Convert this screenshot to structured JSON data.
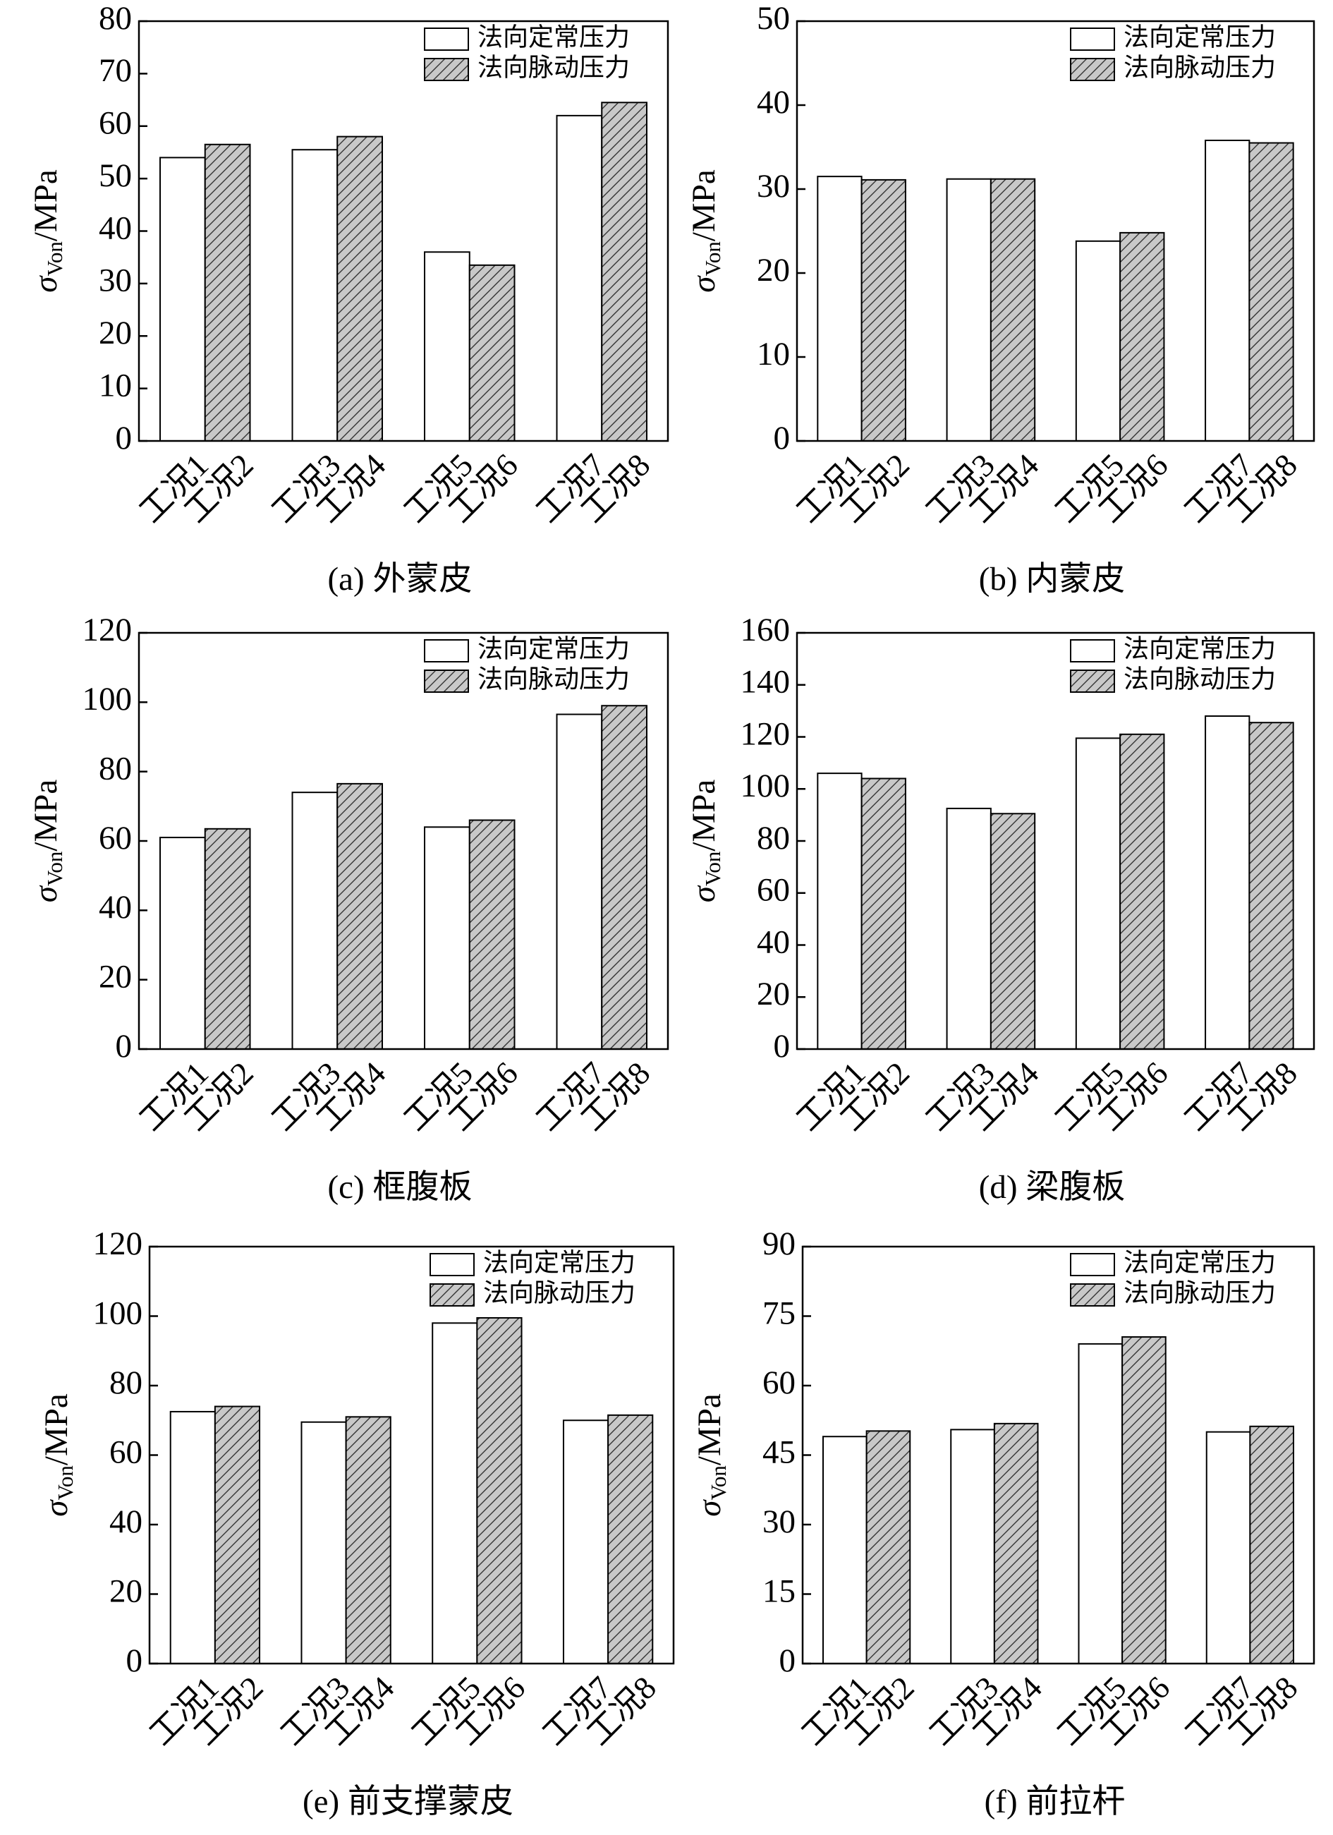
{
  "chart_data": [
    {
      "type": "bar",
      "title": "(a) 外蒙皮",
      "ylabel": {
        "symbol": "σ",
        "subscript": "Von",
        "unit": "/MPa"
      },
      "ylim": [
        0,
        80
      ],
      "yticks": [
        0,
        10,
        20,
        30,
        40,
        50,
        60,
        70,
        80
      ],
      "legend": "upper right",
      "series": [
        {
          "name": "法向定常压力",
          "color": "#ffffff",
          "hatch": false,
          "categories": [
            "工况1",
            "工况3",
            "工况5",
            "工况7"
          ],
          "values": [
            54,
            55.5,
            36,
            62
          ]
        },
        {
          "name": "法向脉动压力",
          "color": "#c8c8c8",
          "hatch": true,
          "categories": [
            "工况2",
            "工况4",
            "工况6",
            "工况8"
          ],
          "values": [
            56.5,
            58,
            33.5,
            64.5
          ]
        }
      ]
    },
    {
      "type": "bar",
      "title": "(b) 内蒙皮",
      "ylabel": {
        "symbol": "σ",
        "subscript": "Von",
        "unit": "/MPa"
      },
      "ylim": [
        0,
        50
      ],
      "yticks": [
        0,
        10,
        20,
        30,
        40,
        50
      ],
      "legend": "upper right",
      "series": [
        {
          "name": "法向定常压力",
          "color": "#ffffff",
          "hatch": false,
          "categories": [
            "工况1",
            "工况3",
            "工况5",
            "工况7"
          ],
          "values": [
            31.5,
            31.2,
            23.8,
            35.8
          ]
        },
        {
          "name": "法向脉动压力",
          "color": "#c8c8c8",
          "hatch": true,
          "categories": [
            "工况2",
            "工况4",
            "工况6",
            "工况8"
          ],
          "values": [
            31.1,
            31.2,
            24.8,
            35.5
          ]
        }
      ]
    },
    {
      "type": "bar",
      "title": "(c) 框腹板",
      "ylabel": {
        "symbol": "σ",
        "subscript": "Von",
        "unit": "/MPa"
      },
      "ylim": [
        0,
        120
      ],
      "yticks": [
        0,
        20,
        40,
        60,
        80,
        100,
        120
      ],
      "legend": "upper right",
      "series": [
        {
          "name": "法向定常压力",
          "color": "#ffffff",
          "hatch": false,
          "categories": [
            "工况1",
            "工况3",
            "工况5",
            "工况7"
          ],
          "values": [
            61,
            74,
            64,
            96.5
          ]
        },
        {
          "name": "法向脉动压力",
          "color": "#c8c8c8",
          "hatch": true,
          "categories": [
            "工况2",
            "工况4",
            "工况6",
            "工况8"
          ],
          "values": [
            63.5,
            76.5,
            66,
            99
          ]
        }
      ]
    },
    {
      "type": "bar",
      "title": "(d) 梁腹板",
      "ylabel": {
        "symbol": "σ",
        "subscript": "Von",
        "unit": "/MPa"
      },
      "ylim": [
        0,
        160
      ],
      "yticks": [
        0,
        20,
        40,
        60,
        80,
        100,
        120,
        140,
        160
      ],
      "legend": "upper right",
      "series": [
        {
          "name": "法向定常压力",
          "color": "#ffffff",
          "hatch": false,
          "categories": [
            "工况1",
            "工况3",
            "工况5",
            "工况7"
          ],
          "values": [
            106,
            92.5,
            119.5,
            128
          ]
        },
        {
          "name": "法向脉动压力",
          "color": "#c8c8c8",
          "hatch": true,
          "categories": [
            "工况2",
            "工况4",
            "工况6",
            "工况8"
          ],
          "values": [
            104,
            90.5,
            121,
            125.5
          ]
        }
      ]
    },
    {
      "type": "bar",
      "title": "(e) 前支撑蒙皮",
      "ylabel": {
        "symbol": "σ",
        "subscript": "Von",
        "unit": "/MPa"
      },
      "ylim": [
        0,
        120
      ],
      "yticks": [
        0,
        20,
        40,
        60,
        80,
        100,
        120
      ],
      "legend": "upper right",
      "series": [
        {
          "name": "法向定常压力",
          "color": "#ffffff",
          "hatch": false,
          "categories": [
            "工况1",
            "工况3",
            "工况5",
            "工况7"
          ],
          "values": [
            72.5,
            69.5,
            98,
            70
          ]
        },
        {
          "name": "法向脉动压力",
          "color": "#c8c8c8",
          "hatch": true,
          "categories": [
            "工况2",
            "工况4",
            "工况6",
            "工况8"
          ],
          "values": [
            74,
            71,
            99.5,
            71.5
          ]
        }
      ]
    },
    {
      "type": "bar",
      "title": "(f) 前拉杆",
      "ylabel": {
        "symbol": "σ",
        "subscript": "Von",
        "unit": "/MPa"
      },
      "ylim": [
        0,
        90
      ],
      "yticks": [
        0,
        15,
        30,
        45,
        60,
        75,
        90
      ],
      "legend": "upper right",
      "series": [
        {
          "name": "法向定常压力",
          "color": "#ffffff",
          "hatch": false,
          "categories": [
            "工况1",
            "工况3",
            "工况5",
            "工况7"
          ],
          "values": [
            49,
            50.5,
            69,
            50
          ]
        },
        {
          "name": "法向脉动压力",
          "color": "#c8c8c8",
          "hatch": true,
          "categories": [
            "工况2",
            "工况4",
            "工况6",
            "工况8"
          ],
          "values": [
            50.2,
            51.8,
            70.5,
            51.2
          ]
        }
      ]
    }
  ]
}
